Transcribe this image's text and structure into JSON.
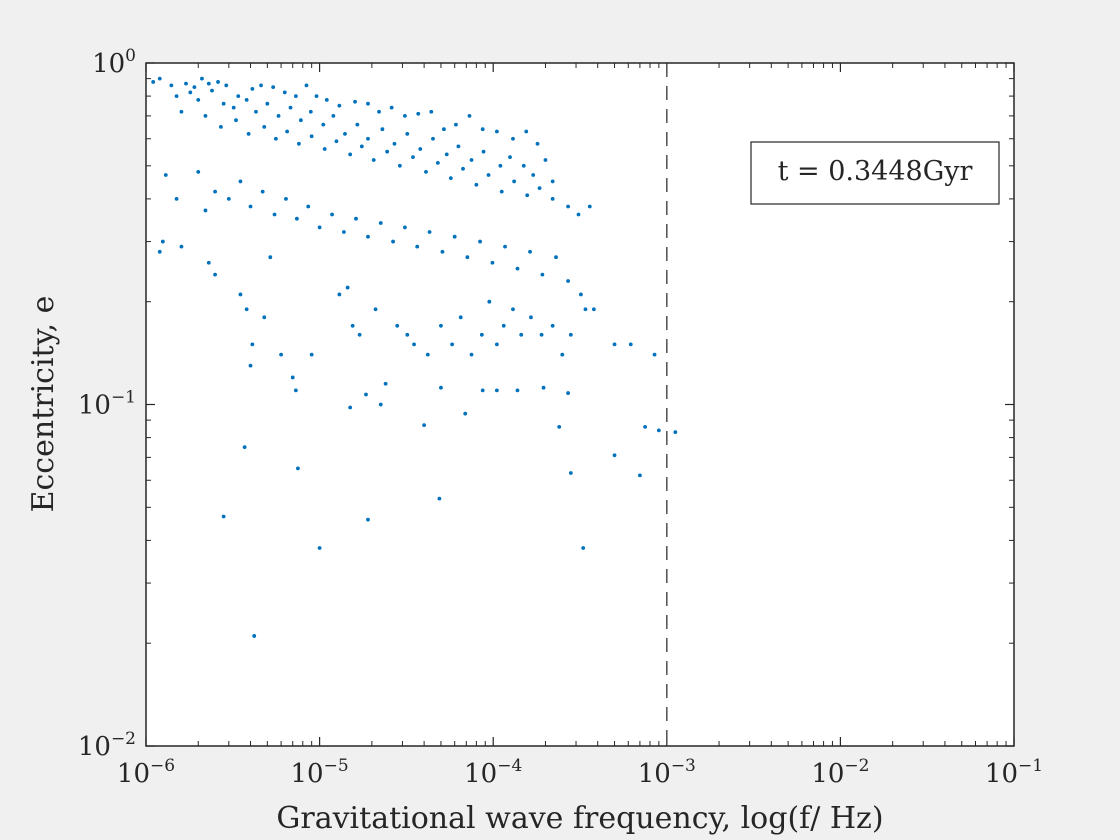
{
  "chart_data": {
    "type": "scatter",
    "title": "",
    "xlabel": "Gravitational wave frequency, log(f/ Hz)",
    "ylabel": "Eccentricity, e",
    "x_scale": "log",
    "y_scale": "log",
    "xlim": [
      1e-06,
      0.1
    ],
    "ylim": [
      0.01,
      1
    ],
    "x_ticks": [
      {
        "base": "10",
        "exp": "−6",
        "value": 1e-06
      },
      {
        "base": "10",
        "exp": "−5",
        "value": 1e-05
      },
      {
        "base": "10",
        "exp": "−4",
        "value": 0.0001
      },
      {
        "base": "10",
        "exp": "−3",
        "value": 0.001
      },
      {
        "base": "10",
        "exp": "−2",
        "value": 0.01
      },
      {
        "base": "10",
        "exp": "−1",
        "value": 0.1
      }
    ],
    "y_ticks": [
      {
        "base": "10",
        "exp": "−2",
        "value": 0.01
      },
      {
        "base": "10",
        "exp": "−1",
        "value": 0.1
      },
      {
        "base": "10",
        "exp": "0",
        "value": 1
      }
    ],
    "grid": false,
    "marker_color": "#0072bd",
    "reference_line": {
      "x": 0.001,
      "style": "dashed",
      "color": "#595959"
    },
    "annotation": {
      "text": "t = 0.3448Gyr",
      "placement": "top-right"
    },
    "points": [
      [
        1.1e-06,
        0.88
      ],
      [
        1.2e-06,
        0.9
      ],
      [
        1.4e-06,
        0.86
      ],
      [
        1.7e-06,
        0.87
      ],
      [
        1.9e-06,
        0.85
      ],
      [
        2.1e-06,
        0.9
      ],
      [
        2.3e-06,
        0.87
      ],
      [
        2.6e-06,
        0.88
      ],
      [
        2.9e-06,
        0.86
      ],
      [
        3.4e-06,
        0.8
      ],
      [
        4.1e-06,
        0.84
      ],
      [
        4.6e-06,
        0.86
      ],
      [
        5.4e-06,
        0.85
      ],
      [
        6.3e-06,
        0.82
      ],
      [
        7.3e-06,
        0.8
      ],
      [
        8.4e-06,
        0.86
      ],
      [
        9.6e-06,
        0.8
      ],
      [
        1.1e-05,
        0.78
      ],
      [
        1.3e-05,
        0.75
      ],
      [
        1.6e-05,
        0.77
      ],
      [
        1.9e-05,
        0.76
      ],
      [
        2.2e-05,
        0.72
      ],
      [
        2.6e-05,
        0.74
      ],
      [
        3.1e-05,
        0.7
      ],
      [
        3.7e-05,
        0.71
      ],
      [
        4.4e-05,
        0.72
      ],
      [
        5.2e-05,
        0.64
      ],
      [
        6.1e-05,
        0.66
      ],
      [
        7.3e-05,
        0.7
      ],
      [
        8.7e-05,
        0.64
      ],
      [
        0.000105,
        0.63
      ],
      [
        0.00013,
        0.6
      ],
      [
        0.000155,
        0.63
      ],
      [
        0.00018,
        0.58
      ],
      [
        1.5e-06,
        0.8
      ],
      [
        1.8e-06,
        0.82
      ],
      [
        2e-06,
        0.78
      ],
      [
        2.4e-06,
        0.83
      ],
      [
        2.8e-06,
        0.76
      ],
      [
        3.2e-06,
        0.74
      ],
      [
        3.8e-06,
        0.78
      ],
      [
        4.3e-06,
        0.72
      ],
      [
        5e-06,
        0.76
      ],
      [
        5.8e-06,
        0.7
      ],
      [
        6.8e-06,
        0.74
      ],
      [
        7.8e-06,
        0.68
      ],
      [
        8.9e-06,
        0.72
      ],
      [
        1.05e-05,
        0.66
      ],
      [
        1.2e-05,
        0.7
      ],
      [
        1.4e-05,
        0.62
      ],
      [
        1.65e-05,
        0.66
      ],
      [
        1.9e-05,
        0.6
      ],
      [
        2.3e-05,
        0.64
      ],
      [
        2.7e-05,
        0.58
      ],
      [
        3.2e-05,
        0.62
      ],
      [
        3.8e-05,
        0.56
      ],
      [
        4.5e-05,
        0.6
      ],
      [
        5.4e-05,
        0.54
      ],
      [
        6.3e-05,
        0.57
      ],
      [
        7.5e-05,
        0.52
      ],
      [
        8.8e-05,
        0.55
      ],
      [
        0.00011,
        0.5
      ],
      [
        0.000125,
        0.53
      ],
      [
        0.00015,
        0.5
      ],
      [
        0.00017,
        0.47
      ],
      [
        0.0002,
        0.52
      ],
      [
        0.00022,
        0.45
      ],
      [
        1.6e-06,
        0.72
      ],
      [
        2.2e-06,
        0.7
      ],
      [
        2.7e-06,
        0.65
      ],
      [
        3.3e-06,
        0.68
      ],
      [
        3.9e-06,
        0.62
      ],
      [
        4.8e-06,
        0.65
      ],
      [
        5.6e-06,
        0.6
      ],
      [
        6.5e-06,
        0.63
      ],
      [
        7.6e-06,
        0.58
      ],
      [
        9e-06,
        0.61
      ],
      [
        1.07e-05,
        0.56
      ],
      [
        1.25e-05,
        0.59
      ],
      [
        1.5e-05,
        0.54
      ],
      [
        1.75e-05,
        0.57
      ],
      [
        2.05e-05,
        0.52
      ],
      [
        2.45e-05,
        0.55
      ],
      [
        2.9e-05,
        0.5
      ],
      [
        3.45e-05,
        0.53
      ],
      [
        4.1e-05,
        0.48
      ],
      [
        4.8e-05,
        0.51
      ],
      [
        5.7e-05,
        0.46
      ],
      [
        6.7e-05,
        0.49
      ],
      [
        8e-05,
        0.44
      ],
      [
        9.4e-05,
        0.47
      ],
      [
        0.000112,
        0.42
      ],
      [
        0.000132,
        0.45
      ],
      [
        0.000157,
        0.41
      ],
      [
        0.000185,
        0.43
      ],
      [
        0.00022,
        0.4
      ],
      [
        0.00027,
        0.38
      ],
      [
        0.00031,
        0.36
      ],
      [
        0.00036,
        0.38
      ],
      [
        1.3e-06,
        0.47
      ],
      [
        1.5e-06,
        0.4
      ],
      [
        2e-06,
        0.48
      ],
      [
        2.2e-06,
        0.37
      ],
      [
        2.5e-06,
        0.42
      ],
      [
        3e-06,
        0.4
      ],
      [
        3.5e-06,
        0.45
      ],
      [
        4e-06,
        0.38
      ],
      [
        4.7e-06,
        0.42
      ],
      [
        5.5e-06,
        0.36
      ],
      [
        6.4e-06,
        0.4
      ],
      [
        7.4e-06,
        0.35
      ],
      [
        8.6e-06,
        0.38
      ],
      [
        1e-05,
        0.33
      ],
      [
        1.18e-05,
        0.36
      ],
      [
        1.38e-05,
        0.32
      ],
      [
        1.62e-05,
        0.35
      ],
      [
        1.9e-05,
        0.31
      ],
      [
        2.25e-05,
        0.34
      ],
      [
        2.65e-05,
        0.3
      ],
      [
        3.1e-05,
        0.33
      ],
      [
        3.65e-05,
        0.29
      ],
      [
        4.3e-05,
        0.32
      ],
      [
        5.1e-05,
        0.28
      ],
      [
        6e-05,
        0.31
      ],
      [
        7.1e-05,
        0.27
      ],
      [
        8.4e-05,
        0.3
      ],
      [
        9.9e-05,
        0.26
      ],
      [
        0.000117,
        0.29
      ],
      [
        0.000138,
        0.25
      ],
      [
        0.000163,
        0.28
      ],
      [
        0.000192,
        0.24
      ],
      [
        0.00023,
        0.27
      ],
      [
        0.00027,
        0.23
      ],
      [
        0.00032,
        0.21
      ],
      [
        0.00038,
        0.19
      ],
      [
        1.2e-06,
        0.28
      ],
      [
        1.25e-06,
        0.3
      ],
      [
        1.6e-06,
        0.29
      ],
      [
        2.3e-06,
        0.26
      ],
      [
        2.5e-06,
        0.24
      ],
      [
        3.5e-06,
        0.21
      ],
      [
        3.8e-06,
        0.19
      ],
      [
        4.1e-06,
        0.15
      ],
      [
        4e-06,
        0.13
      ],
      [
        4.8e-06,
        0.18
      ],
      [
        5.2e-06,
        0.27
      ],
      [
        6e-06,
        0.14
      ],
      [
        7e-06,
        0.12
      ],
      [
        7.3e-06,
        0.11
      ],
      [
        9e-06,
        0.14
      ],
      [
        1.3e-05,
        0.21
      ],
      [
        1.45e-05,
        0.22
      ],
      [
        1.55e-05,
        0.17
      ],
      [
        1.7e-05,
        0.16
      ],
      [
        2.1e-05,
        0.19
      ],
      [
        2.8e-05,
        0.17
      ],
      [
        3.2e-05,
        0.16
      ],
      [
        3.5e-05,
        0.15
      ],
      [
        4.2e-05,
        0.14
      ],
      [
        5e-05,
        0.17
      ],
      [
        5.8e-05,
        0.15
      ],
      [
        6.5e-05,
        0.18
      ],
      [
        7.5e-05,
        0.14
      ],
      [
        8.6e-05,
        0.16
      ],
      [
        9.5e-05,
        0.2
      ],
      [
        0.000105,
        0.15
      ],
      [
        0.000115,
        0.17
      ],
      [
        0.00013,
        0.19
      ],
      [
        0.000145,
        0.16
      ],
      [
        0.000165,
        0.18
      ],
      [
        0.00019,
        0.16
      ],
      [
        0.00022,
        0.17
      ],
      [
        0.00025,
        0.14
      ],
      [
        0.00028,
        0.16
      ],
      [
        0.00034,
        0.19
      ],
      [
        0.0005,
        0.15
      ],
      [
        0.00062,
        0.15
      ],
      [
        0.00085,
        0.14
      ],
      [
        1.5e-05,
        0.098
      ],
      [
        1.85e-05,
        0.107
      ],
      [
        2.25e-05,
        0.1
      ],
      [
        2.4e-05,
        0.115
      ],
      [
        4e-05,
        0.087
      ],
      [
        5e-05,
        0.112
      ],
      [
        6.9e-05,
        0.094
      ],
      [
        8.7e-05,
        0.11
      ],
      [
        0.000105,
        0.11
      ],
      [
        0.000138,
        0.11
      ],
      [
        0.000195,
        0.112
      ],
      [
        0.00024,
        0.086
      ],
      [
        0.00027,
        0.108
      ],
      [
        0.00075,
        0.086
      ],
      [
        0.0009,
        0.084
      ],
      [
        0.00112,
        0.083
      ],
      [
        3.7e-06,
        0.075
      ],
      [
        7.5e-06,
        0.065
      ],
      [
        0.0005,
        0.071
      ],
      [
        0.0007,
        0.062
      ],
      [
        0.00028,
        0.063
      ],
      [
        2.8e-06,
        0.047
      ],
      [
        1e-05,
        0.038
      ],
      [
        1.9e-05,
        0.046
      ],
      [
        4.9e-05,
        0.053
      ],
      [
        0.00033,
        0.038
      ],
      [
        4.2e-06,
        0.021
      ]
    ]
  }
}
